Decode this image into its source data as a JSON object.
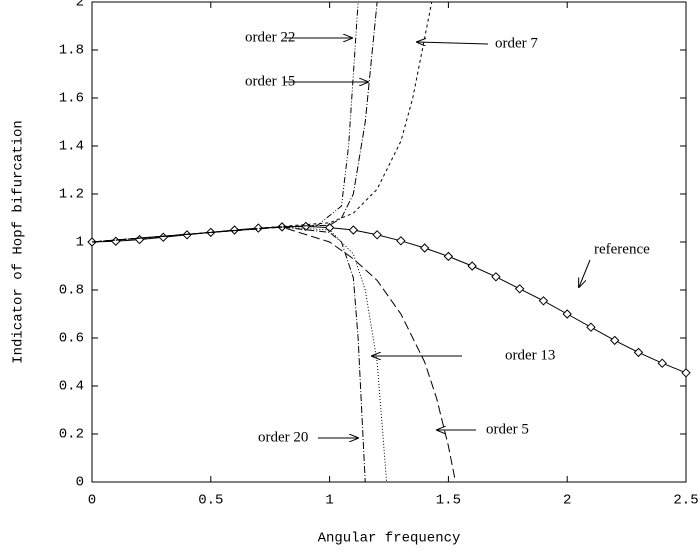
{
  "chart_data": {
    "type": "line",
    "xlabel": "Angular frequency",
    "ylabel": "Indicator of Hopf bifurcation",
    "xlim": [
      0,
      2.5
    ],
    "ylim": [
      0,
      2
    ],
    "xticks": [
      0,
      0.5,
      1,
      1.5,
      2,
      2.5
    ],
    "yticks": [
      0,
      0.2,
      0.4,
      0.6,
      0.8,
      1,
      1.2,
      1.4,
      1.6,
      1.8,
      2
    ],
    "series": [
      {
        "name": "reference",
        "color": "#000",
        "dash": "none",
        "marker": "diamond",
        "x": [
          0,
          0.1,
          0.2,
          0.3,
          0.4,
          0.5,
          0.6,
          0.7,
          0.8,
          0.9,
          1.0,
          1.1,
          1.2,
          1.3,
          1.4,
          1.5,
          1.6,
          1.7,
          1.8,
          1.9,
          2.0,
          2.1,
          2.2,
          2.3,
          2.4,
          2.5
        ],
        "values": [
          1.0,
          1.003,
          1.01,
          1.02,
          1.03,
          1.04,
          1.05,
          1.058,
          1.063,
          1.065,
          1.06,
          1.05,
          1.03,
          1.005,
          0.975,
          0.94,
          0.9,
          0.855,
          0.805,
          0.755,
          0.7,
          0.645,
          0.59,
          0.54,
          0.495,
          0.455
        ]
      },
      {
        "name": "order 22",
        "color": "#000",
        "dash": "6 2 1 2 1 2",
        "x": [
          0,
          0.5,
          0.8,
          0.95,
          1.05,
          1.08,
          1.1,
          1.12
        ],
        "values": [
          1.0,
          1.04,
          1.063,
          1.07,
          1.15,
          1.4,
          1.7,
          2
        ]
      },
      {
        "name": "order 7",
        "color": "#000",
        "dash": "3 3",
        "x": [
          0,
          0.5,
          0.8,
          1.0,
          1.1,
          1.2,
          1.3,
          1.35,
          1.4,
          1.43
        ],
        "values": [
          1.0,
          1.04,
          1.065,
          1.08,
          1.12,
          1.22,
          1.42,
          1.6,
          1.85,
          2
        ]
      },
      {
        "name": "order 15",
        "color": "#000",
        "dash": "7 2 1 2",
        "x": [
          0,
          0.5,
          0.8,
          1.0,
          1.05,
          1.1,
          1.15,
          1.18,
          1.2
        ],
        "values": [
          1.0,
          1.04,
          1.063,
          1.07,
          1.1,
          1.2,
          1.5,
          1.8,
          2
        ]
      },
      {
        "name": "order 13",
        "color": "#000",
        "dash": "1 2",
        "x": [
          0,
          0.5,
          0.8,
          1.0,
          1.1,
          1.15,
          1.2,
          1.22,
          1.24
        ],
        "values": [
          1.0,
          1.04,
          1.063,
          1.05,
          0.95,
          0.8,
          0.5,
          0.25,
          0
        ]
      },
      {
        "name": "order 5",
        "color": "#000",
        "dash": "9 4",
        "x": [
          0,
          0.5,
          0.8,
          1.0,
          1.1,
          1.2,
          1.3,
          1.4,
          1.45,
          1.5,
          1.53
        ],
        "values": [
          1.0,
          1.04,
          1.062,
          1.0,
          0.93,
          0.84,
          0.7,
          0.5,
          0.35,
          0.15,
          0
        ]
      },
      {
        "name": "order 20",
        "color": "#000",
        "dash": "7 2 1 2",
        "x": [
          0,
          0.5,
          0.8,
          1.0,
          1.05,
          1.1,
          1.12,
          1.14,
          1.15
        ],
        "values": [
          1.0,
          1.04,
          1.062,
          1.04,
          1.0,
          0.85,
          0.6,
          0.2,
          0
        ]
      }
    ]
  }
}
